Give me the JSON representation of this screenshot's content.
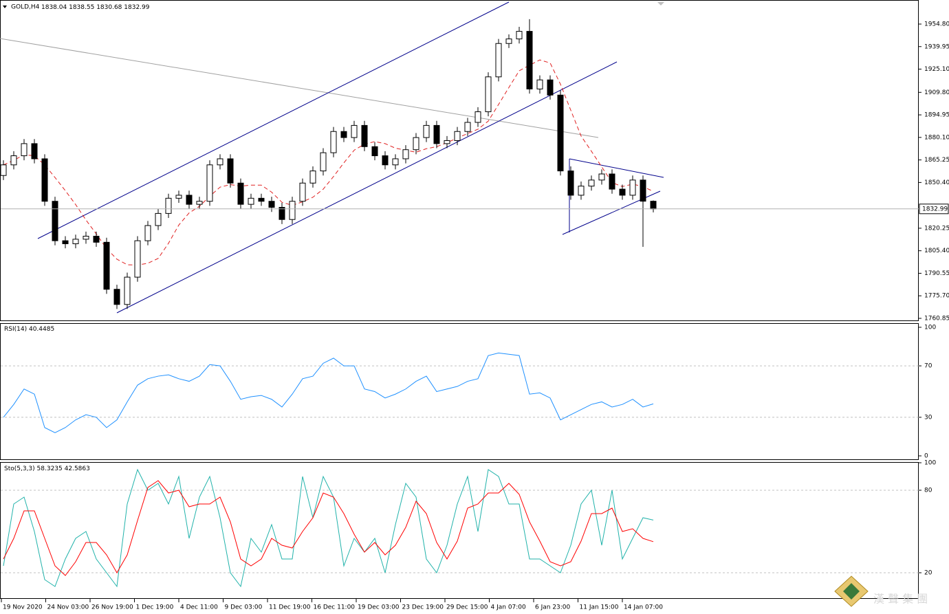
{
  "chart_data": [
    {
      "type": "candlestick",
      "title": "GOLD,H4",
      "open": [
        1855,
        1862,
        1868,
        1876,
        1866,
        1838,
        1812,
        1810,
        1813,
        1815,
        1811,
        1780,
        1770,
        1788,
        1812,
        1822,
        1830,
        1840,
        1842,
        1836,
        1838,
        1862,
        1866,
        1850,
        1836,
        1840,
        1838,
        1834,
        1826,
        1838,
        1850,
        1858,
        1870,
        1884,
        1880,
        1888,
        1874,
        1868,
        1862,
        1866,
        1872,
        1880,
        1888,
        1876,
        1878,
        1884,
        1890,
        1897,
        1920,
        1942,
        1945,
        1950,
        1912,
        1918,
        1908,
        1858,
        1842,
        1848,
        1852,
        1856,
        1846,
        1842,
        1852,
        1838.04
      ],
      "high": [
        1865,
        1871,
        1879,
        1879,
        1869,
        1841,
        1815,
        1816,
        1818,
        1818,
        1814,
        1783,
        1791,
        1815,
        1825,
        1833,
        1843,
        1845,
        1845,
        1841,
        1865,
        1869,
        1869,
        1853,
        1843,
        1843,
        1841,
        1837,
        1841,
        1853,
        1861,
        1873,
        1887,
        1887,
        1891,
        1891,
        1877,
        1871,
        1869,
        1875,
        1883,
        1891,
        1891,
        1881,
        1887,
        1893,
        1900,
        1923,
        1945,
        1948,
        1953,
        1958,
        1921,
        1921,
        1911,
        1861,
        1851,
        1855,
        1859,
        1859,
        1849,
        1855,
        1855,
        1838.55
      ],
      "low": [
        1852,
        1859,
        1865,
        1863,
        1835,
        1809,
        1807,
        1807,
        1810,
        1808,
        1777,
        1767,
        1767,
        1785,
        1809,
        1819,
        1827,
        1837,
        1833,
        1833,
        1835,
        1859,
        1847,
        1833,
        1833,
        1835,
        1831,
        1823,
        1823,
        1835,
        1847,
        1855,
        1867,
        1877,
        1877,
        1871,
        1865,
        1859,
        1859,
        1863,
        1869,
        1877,
        1873,
        1873,
        1875,
        1881,
        1887,
        1894,
        1917,
        1939,
        1942,
        1909,
        1909,
        1905,
        1855,
        1839,
        1839,
        1845,
        1849,
        1843,
        1839,
        1839,
        1808,
        1830.68
      ],
      "close": [
        1862,
        1868,
        1876,
        1866,
        1838,
        1812,
        1810,
        1813,
        1815,
        1811,
        1780,
        1770,
        1788,
        1812,
        1822,
        1830,
        1840,
        1842,
        1836,
        1838,
        1862,
        1866,
        1850,
        1836,
        1840,
        1838,
        1834,
        1826,
        1838,
        1850,
        1858,
        1870,
        1884,
        1880,
        1888,
        1874,
        1868,
        1862,
        1866,
        1872,
        1880,
        1888,
        1876,
        1878,
        1884,
        1890,
        1897,
        1920,
        1942,
        1945,
        1950,
        1912,
        1918,
        1908,
        1858,
        1842,
        1848,
        1852,
        1856,
        1846,
        1842,
        1852,
        1838.04,
        1832.99
      ],
      "ylim": [
        1759.49,
        1969.75
      ],
      "yticks": [
        {
          "value": 1954.8,
          "label": "1954.80"
        },
        {
          "value": 1939.95,
          "label": "1939.95"
        },
        {
          "value": 1925.1,
          "label": "1925.10"
        },
        {
          "value": 1909.8,
          "label": "1909.80"
        },
        {
          "value": 1894.95,
          "label": "1894.95"
        },
        {
          "value": 1880.1,
          "label": "1880.10"
        },
        {
          "value": 1865.25,
          "label": "1865.25"
        },
        {
          "value": 1850.4,
          "label": "1850.40"
        },
        {
          "value": 1820.25,
          "label": "1820.25"
        },
        {
          "value": 1805.4,
          "label": "1805.40"
        },
        {
          "value": 1790.55,
          "label": "1790.55"
        },
        {
          "value": 1775.7,
          "label": "1775.70"
        },
        {
          "value": 1760.85,
          "label": "1760.85"
        }
      ],
      "x_labels": [
        "19 Nov 2020",
        "24 Nov 03:00",
        "26 Nov 19:00",
        "1 Dec 19:00",
        "4 Dec 11:00",
        "9 Dec 03:00",
        "11 Dec 19:00",
        "16 Dec 11:00",
        "19 Dec 03:00",
        "23 Dec 19:00",
        "29 Dec 15:00",
        "4 Jan 07:00",
        "6 Jan 23:00",
        "11 Jan 15:00",
        "14 Jan 07:00"
      ]
    },
    {
      "type": "line",
      "title": "RSI(14)",
      "color": "#1e90ff",
      "values": [
        30,
        40,
        52,
        48,
        22,
        18,
        22,
        28,
        32,
        30,
        22,
        28,
        42,
        55,
        60,
        62,
        63,
        60,
        58,
        62,
        71,
        70,
        58,
        44,
        46,
        47,
        44,
        38,
        48,
        60,
        62,
        72,
        76,
        70,
        70,
        52,
        50,
        45,
        48,
        52,
        58,
        62,
        50,
        52,
        54,
        58,
        60,
        78,
        80,
        79,
        78,
        48,
        49,
        45,
        28,
        32,
        36,
        40,
        42,
        38,
        40,
        44,
        38,
        40.4485
      ],
      "ylim": [
        0,
        100
      ],
      "yticks": [
        100,
        70,
        30,
        0
      ]
    },
    {
      "type": "line",
      "title": "Sto(5,3,3)",
      "series": [
        {
          "color": "#20b2aa",
          "values": [
            25,
            70,
            75,
            50,
            15,
            10,
            30,
            45,
            50,
            30,
            20,
            10,
            70,
            95,
            80,
            85,
            70,
            90,
            45,
            75,
            90,
            60,
            20,
            10,
            45,
            35,
            55,
            30,
            30,
            90,
            60,
            90,
            75,
            25,
            45,
            35,
            45,
            20,
            55,
            85,
            75,
            30,
            20,
            40,
            70,
            90,
            50,
            95,
            90,
            70,
            70,
            30,
            30,
            25,
            20,
            40,
            70,
            80,
            40,
            80,
            30,
            45,
            60,
            58.3235
          ]
        },
        {
          "color": "#ff0000",
          "values": [
            30,
            45,
            65,
            65,
            45,
            25,
            18,
            28,
            42,
            42,
            33,
            20,
            33,
            58,
            82,
            87,
            78,
            80,
            68,
            70,
            70,
            75,
            57,
            30,
            25,
            30,
            45,
            40,
            38,
            50,
            60,
            78,
            75,
            63,
            48,
            35,
            42,
            33,
            40,
            53,
            72,
            63,
            42,
            30,
            43,
            67,
            70,
            78,
            78,
            85,
            77,
            57,
            43,
            28,
            25,
            28,
            43,
            63,
            63,
            67,
            50,
            52,
            45,
            42.5863
          ]
        }
      ],
      "ylim": [
        0,
        100
      ],
      "yticks": [
        100,
        80,
        20
      ]
    }
  ],
  "watermark": "漢 聲 集 團"
}
